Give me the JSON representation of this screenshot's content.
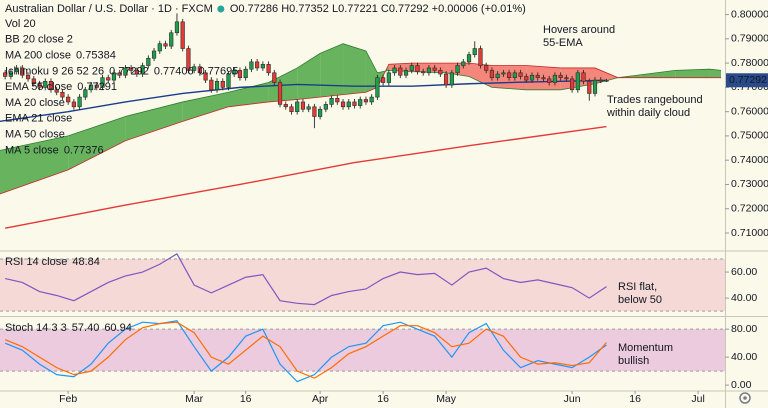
{
  "chart_data": [
    {
      "type": "candlestick",
      "title": "Australian Dollar / U.S. Dollar · 1D · FXCM",
      "ohlc": "O0.77286 H0.77352 L0.77221 C0.77292 +0.00006 (+0.01%)",
      "legend": [
        {
          "name": "Vol 20",
          "muted": true
        },
        {
          "name": "BB 20 close 2",
          "muted": true
        },
        {
          "name": "MA 200 close",
          "values": [
            "0.75384"
          ],
          "colors": [
            "#e53935"
          ]
        },
        {
          "name": "Ichimoku 9 26 52 26",
          "values": [
            "0.77292",
            "0.77406",
            "0.77695"
          ],
          "colors": [
            "#2196f3",
            "#b71c1c",
            "#43a047"
          ]
        },
        {
          "name": "EMA 55 close",
          "values": [
            "0.77291"
          ],
          "colors": [
            "#1a3c8c"
          ]
        },
        {
          "name": "MA 20 close",
          "muted": true
        },
        {
          "name": "EMA 21 close",
          "muted": true
        },
        {
          "name": "MA 50 close",
          "muted": true
        },
        {
          "name": "MA 5 close",
          "values": [
            "0.77376"
          ],
          "colors": [
            "#2962ff"
          ]
        }
      ],
      "annotations": [
        "Hovers around",
        "55-EMA",
        "Trades rangebound",
        "within daily cloud"
      ],
      "up_color": "#1e9e4a",
      "down_color": "#e53935",
      "open": [
        0.776,
        0.7745,
        0.7765,
        0.778,
        0.775,
        0.7735,
        0.7715,
        0.77,
        0.7725,
        0.769,
        0.768,
        0.766,
        0.764,
        0.762,
        0.766,
        0.769,
        0.771,
        0.77,
        0.774,
        0.773,
        0.776,
        0.775,
        0.778,
        0.777,
        0.7755,
        0.779,
        0.782,
        0.785,
        0.788,
        0.787,
        0.7925,
        0.797,
        0.786,
        0.777,
        0.7785,
        0.776,
        0.773,
        0.769,
        0.7725,
        0.77,
        0.7755,
        0.777,
        0.774,
        0.7775,
        0.7805,
        0.778,
        0.7795,
        0.776,
        0.772,
        0.763,
        0.762,
        0.76,
        0.764,
        0.761,
        0.762,
        0.758,
        0.761,
        0.763,
        0.7655,
        0.764,
        0.762,
        0.764,
        0.7625,
        0.765,
        0.764,
        0.766,
        0.774,
        0.772,
        0.776,
        0.778,
        0.775,
        0.777,
        0.779,
        0.7765,
        0.776,
        0.778,
        0.777,
        0.7755,
        0.771,
        0.776,
        0.779,
        0.7805,
        0.7835,
        0.786,
        0.779,
        0.777,
        0.774,
        0.7755,
        0.776,
        0.774,
        0.776,
        0.7745,
        0.773,
        0.775,
        0.774,
        0.7735,
        0.772,
        0.775,
        0.774,
        0.7735,
        0.769,
        0.776,
        0.7725,
        0.7675,
        0.773,
        0.77286
      ],
      "high": [
        0.7772,
        0.7777,
        0.7792,
        0.7792,
        0.7762,
        0.7747,
        0.7727,
        0.7737,
        0.7737,
        0.7702,
        0.7692,
        0.7672,
        0.7652,
        0.7672,
        0.7702,
        0.7722,
        0.7722,
        0.7752,
        0.7752,
        0.7772,
        0.7772,
        0.7792,
        0.7792,
        0.7782,
        0.7802,
        0.7832,
        0.7862,
        0.7892,
        0.7892,
        0.7937,
        0.8005,
        0.7982,
        0.7872,
        0.7797,
        0.7797,
        0.7772,
        0.7742,
        0.7737,
        0.7737,
        0.7767,
        0.7782,
        0.7782,
        0.7787,
        0.7817,
        0.7817,
        0.7807,
        0.7807,
        0.7772,
        0.7732,
        0.7642,
        0.7632,
        0.7652,
        0.7652,
        0.7632,
        0.7632,
        0.7622,
        0.7642,
        0.7667,
        0.7667,
        0.7652,
        0.7652,
        0.7652,
        0.7662,
        0.7662,
        0.7672,
        0.7752,
        0.7752,
        0.7772,
        0.7792,
        0.7792,
        0.7782,
        0.7802,
        0.7802,
        0.7777,
        0.7792,
        0.7792,
        0.7782,
        0.7767,
        0.7772,
        0.7802,
        0.7817,
        0.7847,
        0.789,
        0.7872,
        0.7802,
        0.7782,
        0.7767,
        0.7772,
        0.7772,
        0.7772,
        0.7772,
        0.7757,
        0.7762,
        0.7762,
        0.7752,
        0.7747,
        0.7762,
        0.7762,
        0.7752,
        0.7747,
        0.7772,
        0.7772,
        0.7737,
        0.7742,
        0.7742,
        0.77352
      ],
      "low": [
        0.7733,
        0.7733,
        0.7753,
        0.7738,
        0.7723,
        0.7703,
        0.7688,
        0.7688,
        0.7678,
        0.7668,
        0.7648,
        0.7628,
        0.7608,
        0.7608,
        0.7648,
        0.7678,
        0.7688,
        0.7688,
        0.7718,
        0.7718,
        0.7738,
        0.7738,
        0.7758,
        0.7743,
        0.7743,
        0.7778,
        0.7808,
        0.7838,
        0.7858,
        0.7858,
        0.7913,
        0.7848,
        0.7758,
        0.7758,
        0.7748,
        0.7718,
        0.7678,
        0.7678,
        0.7688,
        0.7688,
        0.7743,
        0.7728,
        0.7728,
        0.7763,
        0.7768,
        0.7768,
        0.7748,
        0.7708,
        0.7618,
        0.7608,
        0.7588,
        0.7588,
        0.7598,
        0.7598,
        0.7532,
        0.7568,
        0.7598,
        0.7618,
        0.7628,
        0.7608,
        0.7608,
        0.7613,
        0.7613,
        0.7628,
        0.7628,
        0.7648,
        0.7708,
        0.7708,
        0.7748,
        0.7738,
        0.7738,
        0.7758,
        0.7753,
        0.7748,
        0.7748,
        0.7758,
        0.7743,
        0.7698,
        0.7698,
        0.7748,
        0.7778,
        0.7793,
        0.7823,
        0.7778,
        0.7758,
        0.7728,
        0.7728,
        0.7743,
        0.7728,
        0.7728,
        0.7733,
        0.7718,
        0.7718,
        0.7728,
        0.7723,
        0.7708,
        0.7708,
        0.7728,
        0.7723,
        0.7678,
        0.7678,
        0.7713,
        0.7645,
        0.7663,
        0.7718,
        0.77221
      ],
      "close": [
        0.7745,
        0.7765,
        0.778,
        0.775,
        0.7735,
        0.7715,
        0.77,
        0.7725,
        0.769,
        0.768,
        0.766,
        0.764,
        0.762,
        0.766,
        0.769,
        0.771,
        0.77,
        0.774,
        0.773,
        0.776,
        0.775,
        0.778,
        0.777,
        0.7755,
        0.779,
        0.782,
        0.785,
        0.788,
        0.787,
        0.7925,
        0.797,
        0.786,
        0.777,
        0.7785,
        0.776,
        0.773,
        0.769,
        0.7725,
        0.77,
        0.7755,
        0.777,
        0.774,
        0.7775,
        0.7805,
        0.778,
        0.7795,
        0.776,
        0.772,
        0.763,
        0.762,
        0.76,
        0.764,
        0.761,
        0.762,
        0.758,
        0.761,
        0.763,
        0.7655,
        0.764,
        0.762,
        0.764,
        0.7625,
        0.765,
        0.764,
        0.766,
        0.774,
        0.772,
        0.776,
        0.778,
        0.775,
        0.777,
        0.779,
        0.7765,
        0.776,
        0.778,
        0.777,
        0.7755,
        0.771,
        0.776,
        0.779,
        0.7805,
        0.7835,
        0.786,
        0.779,
        0.777,
        0.774,
        0.7755,
        0.776,
        0.774,
        0.776,
        0.7745,
        0.773,
        0.775,
        0.774,
        0.7735,
        0.772,
        0.775,
        0.774,
        0.7735,
        0.769,
        0.776,
        0.7725,
        0.7675,
        0.773,
        0.7729,
        0.77292
      ],
      "lines": [
        {
          "color": "#e53935",
          "x": [
            0,
            21,
            41,
            61,
            81,
            105
          ],
          "values": [
            0.712,
            0.7215,
            0.73,
            0.739,
            0.746,
            0.75384
          ]
        },
        {
          "color": "#1a3c8c",
          "x": [
            -1,
            11,
            21,
            31,
            41,
            51,
            61,
            71,
            81,
            91,
            101,
            105
          ],
          "values": [
            0.756,
            0.76,
            0.764,
            0.7675,
            0.77,
            0.7712,
            0.7705,
            0.7705,
            0.7715,
            0.7722,
            0.7727,
            0.77291
          ]
        }
      ],
      "cloud": {
        "up_color": "#4ea845",
        "down_color": "#f2554d",
        "x": [
          -1,
          11,
          21,
          31,
          39,
          46,
          51,
          55,
          59,
          63,
          65,
          67,
          71,
          77,
          81,
          85,
          91,
          97,
          103,
          107,
          111,
          117,
          123,
          125
        ],
        "span_a": [
          0.744,
          0.75,
          0.758,
          0.764,
          0.768,
          0.772,
          0.778,
          0.784,
          0.788,
          0.785,
          0.776,
          0.777,
          0.7765,
          0.776,
          0.7745,
          0.77,
          0.769,
          0.769,
          0.7715,
          0.774,
          0.7752,
          0.777,
          0.7775,
          0.777
        ],
        "span_b": [
          0.726,
          0.736,
          0.748,
          0.756,
          0.762,
          0.764,
          0.765,
          0.766,
          0.767,
          0.768,
          0.77,
          0.7795,
          0.78,
          0.78,
          0.78,
          0.779,
          0.779,
          0.778,
          0.778,
          0.774,
          0.774,
          0.774,
          0.774,
          0.774
        ]
      },
      "last_price_color": "#2a4a8a",
      "xlim": [
        -0.9,
        125.7
      ],
      "xticks": [
        {
          "value": 11,
          "label": "Feb"
        },
        {
          "value": 33,
          "label": "Mar"
        },
        {
          "value": 42,
          "label": "16"
        },
        {
          "value": 55,
          "label": "Apr"
        },
        {
          "value": 66,
          "label": "16"
        },
        {
          "value": 77,
          "label": "May"
        },
        {
          "value": 99,
          "label": "Jun"
        },
        {
          "value": 110,
          "label": "16"
        },
        {
          "value": 121,
          "label": "Jul"
        }
      ],
      "ylim": [
        0.703,
        0.806
      ],
      "yticks": [
        {
          "value": 0.71,
          "label": "0.71000"
        },
        {
          "value": 0.72,
          "label": "0.72000"
        },
        {
          "value": 0.73,
          "label": "0.73000"
        },
        {
          "value": 0.74,
          "label": "0.74000"
        },
        {
          "value": 0.75,
          "label": "0.75000"
        },
        {
          "value": 0.76,
          "label": "0.76000"
        },
        {
          "value": 0.77,
          "label": "0.77000"
        },
        {
          "value": 0.78,
          "label": "0.78000"
        },
        {
          "value": 0.79,
          "label": "0.79000"
        },
        {
          "value": 0.8,
          "label": "0.80000"
        }
      ]
    },
    {
      "type": "line",
      "title": "RSI 14 close",
      "annotations": [
        "RSI flat,",
        "below 50"
      ],
      "x": [
        0,
        3,
        6,
        9,
        12,
        15,
        18,
        21,
        24,
        27,
        30,
        33,
        36,
        39,
        42,
        45,
        48,
        51,
        54,
        57,
        60,
        63,
        66,
        69,
        72,
        75,
        78,
        81,
        84,
        87,
        90,
        93,
        96,
        99,
        102,
        105
      ],
      "series": [
        {
          "color": "#7e57c2",
          "last_label": "48.84",
          "values": [
            55,
            52,
            45,
            42,
            38,
            45,
            52,
            57,
            60,
            66,
            74,
            50,
            44,
            50,
            56,
            58,
            38,
            36,
            35,
            42,
            45,
            47,
            55,
            60,
            58,
            59,
            50,
            60,
            63,
            55,
            52,
            54,
            51,
            48,
            40,
            48.84
          ]
        }
      ],
      "band": [
        30,
        70
      ],
      "band_color": "#f4d9d6",
      "ylim": [
        27,
        75.4
      ],
      "yticks": [
        {
          "value": 40,
          "label": "40.00"
        },
        {
          "value": 60,
          "label": "60.00"
        }
      ]
    },
    {
      "type": "line",
      "title": "Stoch 14 3 3",
      "annotations": [
        "Momentum",
        "bullish"
      ],
      "x": [
        0,
        3,
        6,
        9,
        12,
        15,
        18,
        21,
        24,
        27,
        30,
        33,
        36,
        39,
        42,
        45,
        48,
        51,
        54,
        57,
        60,
        63,
        66,
        69,
        72,
        75,
        78,
        81,
        84,
        87,
        90,
        93,
        96,
        99,
        102,
        105
      ],
      "series": [
        {
          "color": "#2196f3",
          "last_label": "57.40",
          "values": [
            60,
            50,
            30,
            15,
            12,
            30,
            60,
            80,
            90,
            88,
            92,
            55,
            20,
            40,
            70,
            80,
            30,
            5,
            15,
            40,
            55,
            60,
            85,
            90,
            80,
            70,
            40,
            75,
            88,
            50,
            25,
            35,
            30,
            25,
            40,
            57.4
          ]
        },
        {
          "color": "#ff6d00",
          "last_label": "60.94",
          "values": [
            65,
            55,
            40,
            25,
            15,
            20,
            40,
            65,
            82,
            88,
            90,
            75,
            40,
            30,
            50,
            70,
            55,
            20,
            10,
            25,
            45,
            55,
            70,
            85,
            85,
            75,
            55,
            60,
            80,
            70,
            40,
            30,
            32,
            28,
            32,
            60.94
          ]
        }
      ],
      "band": [
        20,
        80
      ],
      "band_color": "#ebcbdd",
      "ylim": [
        -7,
        96
      ],
      "yticks": [
        {
          "value": 0,
          "label": "0.00"
        },
        {
          "value": 40,
          "label": "40.00"
        },
        {
          "value": 80,
          "label": "80.00"
        }
      ]
    }
  ]
}
